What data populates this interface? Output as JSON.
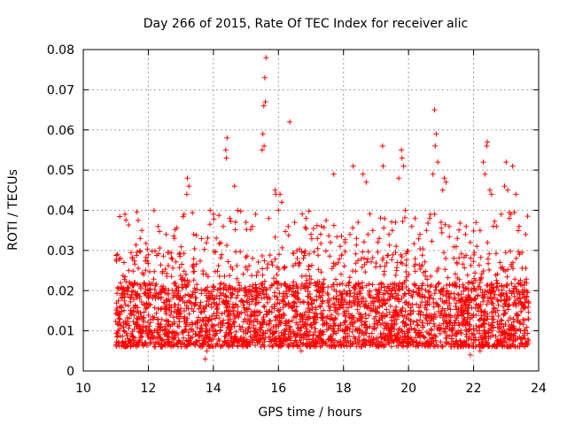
{
  "chart_data": {
    "type": "scatter",
    "title": "Day 266 of 2015, Rate Of TEC Index for receiver alic",
    "xlabel": "GPS time / hours",
    "ylabel": "ROTI / TECUs",
    "xlim": [
      10,
      24
    ],
    "ylim": [
      0,
      0.08
    ],
    "x_ticks": [
      "10",
      "12",
      "14",
      "16",
      "18",
      "20",
      "22",
      "24"
    ],
    "y_ticks": [
      "0",
      "0.01",
      "0.02",
      "0.03",
      "0.04",
      "0.05",
      "0.06",
      "0.07",
      "0.08"
    ],
    "grid": true,
    "marker": "+",
    "color": "#ff0000",
    "series_notes": "Dense cloud of ROTI samples from ~11.0 h to ~23.7 h; baseline mostly 0.005-0.025 TECUs with spikes reaching ~0.078 near 15.6 h.",
    "points": [
      [
        15.62,
        0.078
      ],
      [
        15.58,
        0.073
      ],
      [
        15.55,
        0.066
      ],
      [
        15.6,
        0.067
      ],
      [
        15.52,
        0.059
      ],
      [
        15.56,
        0.056
      ],
      [
        15.5,
        0.055
      ],
      [
        14.42,
        0.058
      ],
      [
        14.38,
        0.055
      ],
      [
        14.4,
        0.053
      ],
      [
        16.35,
        0.062
      ],
      [
        20.8,
        0.065
      ],
      [
        20.85,
        0.059
      ],
      [
        20.82,
        0.056
      ],
      [
        20.9,
        0.052
      ],
      [
        20.75,
        0.049
      ],
      [
        19.78,
        0.055
      ],
      [
        19.8,
        0.053
      ],
      [
        19.85,
        0.051
      ],
      [
        19.7,
        0.048
      ],
      [
        19.2,
        0.056
      ],
      [
        19.22,
        0.051
      ],
      [
        18.3,
        0.051
      ],
      [
        18.6,
        0.049
      ],
      [
        18.7,
        0.047
      ],
      [
        17.7,
        0.049
      ],
      [
        22.42,
        0.057
      ],
      [
        22.4,
        0.056
      ],
      [
        22.3,
        0.052
      ],
      [
        22.35,
        0.049
      ],
      [
        23.0,
        0.052
      ],
      [
        23.2,
        0.051
      ],
      [
        21.1,
        0.048
      ],
      [
        21.15,
        0.047
      ],
      [
        21.05,
        0.045
      ],
      [
        13.2,
        0.048
      ],
      [
        13.25,
        0.046
      ],
      [
        13.18,
        0.044
      ],
      [
        14.65,
        0.046
      ],
      [
        15.9,
        0.045
      ],
      [
        15.92,
        0.044
      ],
      [
        16.05,
        0.044
      ],
      [
        16.1,
        0.042
      ],
      [
        22.5,
        0.045
      ],
      [
        22.55,
        0.044
      ],
      [
        22.95,
        0.046
      ],
      [
        23.05,
        0.045
      ],
      [
        23.3,
        0.044
      ],
      [
        11.28,
        0.039
      ],
      [
        11.8,
        0.035
      ],
      [
        11.75,
        0.033
      ],
      [
        12.3,
        0.036
      ],
      [
        12.55,
        0.034
      ],
      [
        12.8,
        0.033
      ],
      [
        13.4,
        0.034
      ],
      [
        13.1,
        0.039
      ],
      [
        13.9,
        0.04
      ],
      [
        14.0,
        0.039
      ],
      [
        14.3,
        0.036
      ],
      [
        14.75,
        0.04
      ],
      [
        15.0,
        0.037
      ],
      [
        15.2,
        0.036
      ],
      [
        15.3,
        0.039
      ],
      [
        15.7,
        0.038
      ],
      [
        16.0,
        0.04
      ],
      [
        16.3,
        0.036
      ],
      [
        16.5,
        0.037
      ],
      [
        16.85,
        0.038
      ],
      [
        17.0,
        0.034
      ],
      [
        17.2,
        0.033
      ],
      [
        17.6,
        0.032
      ],
      [
        17.9,
        0.031
      ],
      [
        18.05,
        0.032
      ],
      [
        18.2,
        0.034
      ],
      [
        18.4,
        0.033
      ],
      [
        18.45,
        0.037
      ],
      [
        18.75,
        0.034
      ],
      [
        18.9,
        0.035
      ],
      [
        19.1,
        0.033
      ],
      [
        19.4,
        0.034
      ],
      [
        19.5,
        0.035
      ],
      [
        19.6,
        0.037
      ],
      [
        19.9,
        0.04
      ],
      [
        20.1,
        0.036
      ],
      [
        20.2,
        0.038
      ],
      [
        20.35,
        0.034
      ],
      [
        20.55,
        0.035
      ],
      [
        20.65,
        0.038
      ],
      [
        21.0,
        0.037
      ],
      [
        21.25,
        0.036
      ],
      [
        21.5,
        0.033
      ],
      [
        21.75,
        0.034
      ],
      [
        21.9,
        0.032
      ],
      [
        22.1,
        0.031
      ],
      [
        22.2,
        0.035
      ],
      [
        22.7,
        0.036
      ],
      [
        22.85,
        0.039
      ],
      [
        23.1,
        0.038
      ],
      [
        23.4,
        0.036
      ],
      [
        23.6,
        0.034
      ],
      [
        13.75,
        0.003
      ],
      [
        13.8,
        0.005
      ],
      [
        17.75,
        0.006
      ],
      [
        21.9,
        0.004
      ],
      [
        22.2,
        0.005
      ],
      [
        11.1,
        0.007
      ],
      [
        12.4,
        0.006
      ],
      [
        14.9,
        0.006
      ],
      [
        16.7,
        0.005
      ],
      [
        19.95,
        0.006
      ],
      [
        23.5,
        0.007
      ],
      [
        11.05,
        0.029
      ],
      [
        11.15,
        0.028
      ],
      [
        11.25,
        0.027
      ],
      [
        11.4,
        0.025
      ]
    ],
    "noise": {
      "x_range": [
        11.0,
        23.7
      ],
      "count": 3600,
      "y_typical": [
        0.006,
        0.022
      ],
      "y_occasional_max": 0.03
    }
  }
}
